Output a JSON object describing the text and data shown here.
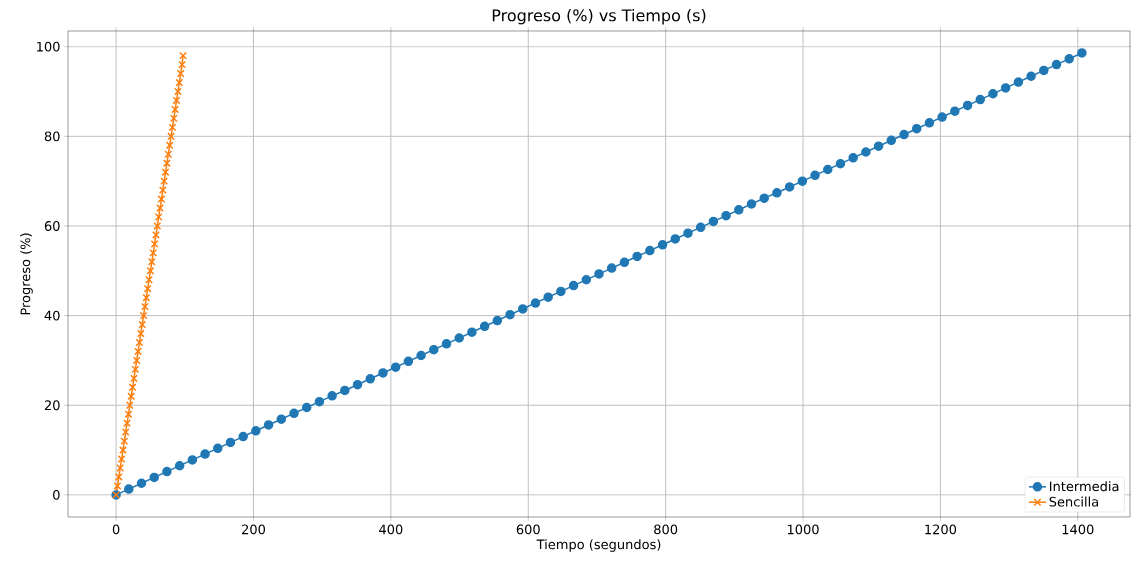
{
  "chart_data": {
    "type": "line",
    "title": "Progreso (%) vs Tiempo (s)",
    "xlabel": "Tiempo (segundos)",
    "ylabel": "Progreso (%)",
    "x": [
      0,
      18.5,
      37,
      55.5,
      74,
      92.5,
      111,
      129.5,
      148,
      166.5,
      185,
      203.5,
      222,
      240.5,
      259,
      277.5,
      296,
      314.5,
      333,
      351.5,
      370,
      388.5,
      407,
      425.5,
      444,
      462.5,
      481,
      499.5,
      518,
      536.5,
      555,
      573.5,
      592,
      610.5,
      629,
      647.5,
      666,
      684.5,
      703,
      721.5,
      740,
      758.5,
      777,
      795.5,
      814,
      832.5,
      851,
      869.5,
      888,
      906.5,
      925,
      943.5,
      962,
      980.5,
      999,
      1017.5,
      1036,
      1054.5,
      1073,
      1091.5,
      1110,
      1128.5,
      1147,
      1165.5,
      1184,
      1202.5,
      1221,
      1239.5,
      1258,
      1276.5,
      1295,
      1313.5,
      1332,
      1350.5,
      1369,
      1387.5,
      1406
    ],
    "series": [
      {
        "name": "Intermedia",
        "color": "#1f77b4",
        "marker": "circle",
        "values": [
          0,
          1.3,
          2.6,
          3.9,
          5.2,
          6.5,
          7.8,
          9.1,
          10.4,
          11.7,
          13,
          14.3,
          15.6,
          16.9,
          18.2,
          19.5,
          20.8,
          22.1,
          23.3,
          24.6,
          25.9,
          27.2,
          28.5,
          29.8,
          31.1,
          32.4,
          33.7,
          35,
          36.3,
          37.6,
          38.9,
          40.2,
          41.5,
          42.8,
          44.1,
          45.4,
          46.7,
          48,
          49.3,
          50.6,
          51.9,
          53.2,
          54.5,
          55.8,
          57.1,
          58.4,
          59.7,
          61,
          62.3,
          63.6,
          64.9,
          66.2,
          67.4,
          68.7,
          70,
          71.3,
          72.6,
          73.9,
          75.2,
          76.5,
          77.8,
          79.1,
          80.4,
          81.7,
          83,
          84.3,
          85.6,
          86.9,
          88.2,
          89.5,
          90.8,
          92.1,
          93.4,
          94.7,
          96,
          97.3,
          98.6
        ]
      },
      {
        "name": "Sencilla",
        "color": "#ff7f0e",
        "marker": "cross",
        "x": [
          0,
          2,
          4,
          6,
          8,
          10,
          12,
          14,
          16,
          18,
          20,
          22,
          24,
          26,
          28,
          30,
          32,
          34,
          36,
          38,
          40,
          42,
          44,
          46,
          48,
          50,
          52,
          54,
          56,
          58,
          60,
          62,
          64,
          66,
          68,
          70,
          72,
          74,
          76,
          78,
          80,
          82,
          84,
          86,
          88,
          90,
          92,
          94,
          96,
          97.5
        ],
        "values": [
          0,
          2,
          4,
          6,
          8,
          10,
          12,
          14,
          16,
          18,
          20,
          22,
          24,
          26,
          28,
          30,
          32,
          34,
          36,
          38,
          40,
          42,
          44,
          46,
          48,
          50,
          52,
          54,
          56,
          58,
          60,
          62,
          64,
          66,
          68,
          70,
          72,
          74,
          76,
          78,
          80,
          82,
          84,
          86,
          88,
          90,
          92,
          94,
          96,
          98
        ]
      }
    ],
    "xlim": [
      -70,
      1476
    ],
    "ylim": [
      -4.93,
      103.5
    ],
    "xticks": [
      0,
      200,
      400,
      600,
      800,
      1000,
      1200,
      1400
    ],
    "yticks": [
      0,
      20,
      40,
      60,
      80,
      100
    ],
    "grid": true,
    "legend": "bottom right",
    "line_style": "solid"
  }
}
